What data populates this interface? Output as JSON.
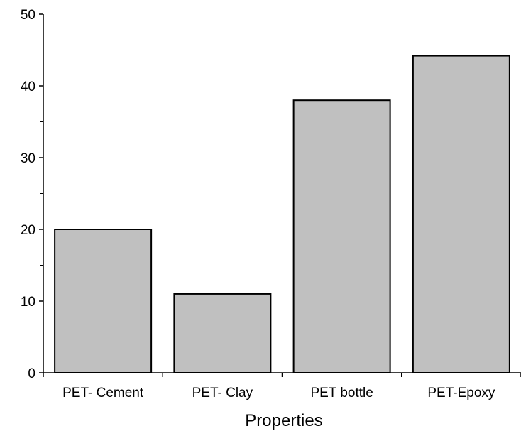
{
  "chart_data": {
    "type": "bar",
    "title": "",
    "xlabel": "Properties",
    "ylabel": "",
    "categories": [
      "PET- Cement",
      "PET- Clay",
      "PET bottle",
      "PET-Epoxy"
    ],
    "values": [
      20,
      11,
      38,
      44.2
    ],
    "ylim": [
      0,
      50
    ],
    "yticks": [
      0,
      10,
      20,
      30,
      40,
      50
    ],
    "ytick_labels": [
      "0",
      "10",
      "20",
      "30",
      "40",
      "50"
    ],
    "grid": false,
    "legend": "none",
    "bar_color": "#c0c0c0"
  }
}
